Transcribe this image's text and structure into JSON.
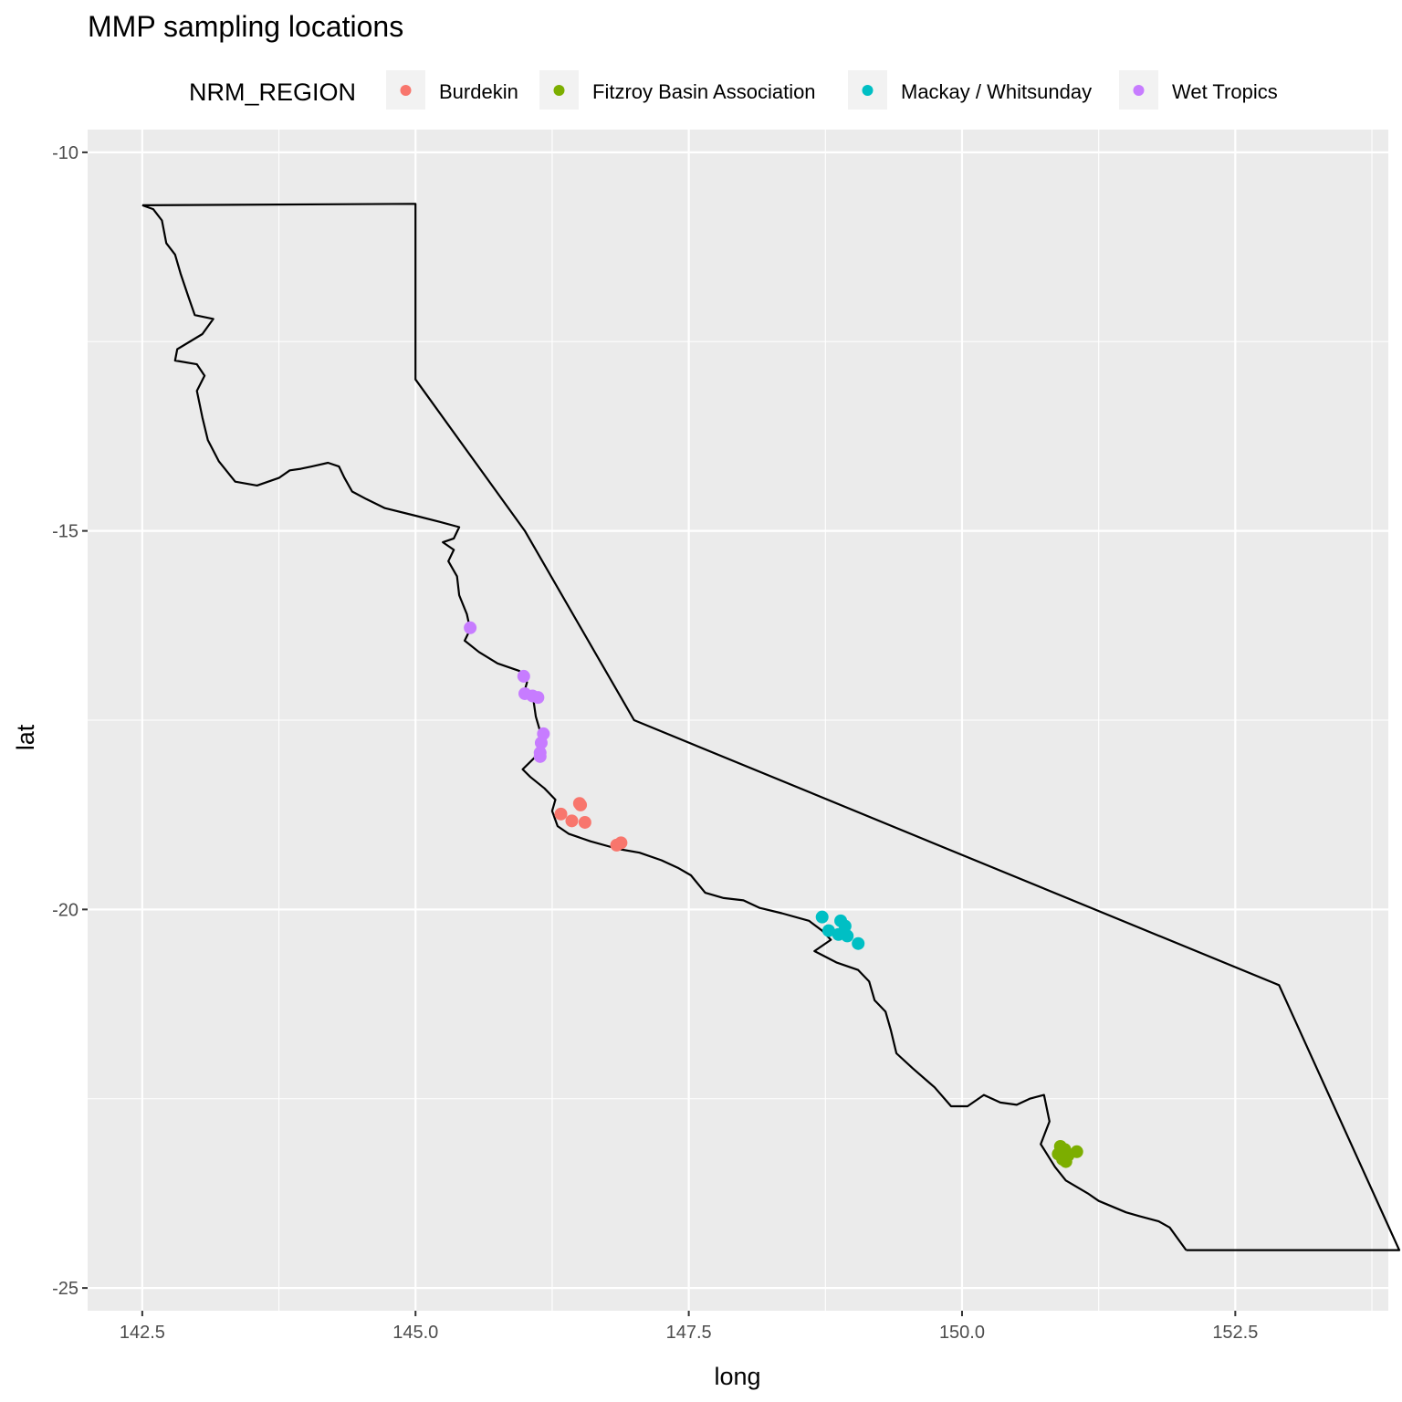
{
  "chart_data": {
    "type": "scatter",
    "title": "MMP sampling locations",
    "xlabel": "long",
    "ylabel": "lat",
    "xlim": [
      142.0,
      153.9
    ],
    "ylim": [
      -25.3,
      -9.7
    ],
    "x_ticks": [
      142.5,
      145.0,
      147.5,
      150.0,
      152.5
    ],
    "x_tick_labels": [
      "142.5",
      "145.0",
      "147.5",
      "150.0",
      "152.5"
    ],
    "y_ticks": [
      -10,
      -15,
      -20,
      -25
    ],
    "y_tick_labels": [
      "-10",
      "-15",
      "-20",
      "-25"
    ],
    "grid": true,
    "legend": {
      "title": "NRM_REGION",
      "position": "top",
      "entries": [
        "Burdekin",
        "Fitzroy Basin Association",
        "Mackay / Whitsunday",
        "Wet Tropics"
      ]
    },
    "colors": {
      "Burdekin": "#F8766D",
      "Fitzroy Basin Association": "#7CAE00",
      "Mackay / Whitsunday": "#00BFC4",
      "Wet Tropics": "#C77CFF",
      "panel": "#EBEBEB",
      "grid": "#FFFFFF"
    },
    "series": [
      {
        "name": "Burdekin",
        "points": [
          [
            146.5,
            -18.6
          ],
          [
            146.51,
            -18.62
          ],
          [
            146.33,
            -18.74
          ],
          [
            146.43,
            -18.83
          ],
          [
            146.55,
            -18.85
          ],
          [
            146.84,
            -19.15
          ],
          [
            146.88,
            -19.12
          ]
        ]
      },
      {
        "name": "Fitzroy Basin Association",
        "points": [
          [
            150.9,
            -23.13
          ],
          [
            150.94,
            -23.17
          ],
          [
            150.88,
            -23.23
          ],
          [
            150.97,
            -23.25
          ],
          [
            151.05,
            -23.2
          ],
          [
            150.92,
            -23.3
          ],
          [
            150.95,
            -23.33
          ]
        ]
      },
      {
        "name": "Mackay / Whitsunday",
        "points": [
          [
            148.72,
            -20.1
          ],
          [
            148.89,
            -20.15
          ],
          [
            148.78,
            -20.28
          ],
          [
            148.87,
            -20.33
          ],
          [
            148.95,
            -20.35
          ],
          [
            149.05,
            -20.45
          ],
          [
            148.93,
            -20.22
          ]
        ]
      },
      {
        "name": "Wet Tropics",
        "points": [
          [
            145.5,
            -16.28
          ],
          [
            145.99,
            -16.92
          ],
          [
            146.0,
            -17.15
          ],
          [
            146.07,
            -17.18
          ],
          [
            146.12,
            -17.2
          ],
          [
            146.17,
            -17.68
          ],
          [
            146.15,
            -17.8
          ],
          [
            146.14,
            -17.93
          ],
          [
            146.14,
            -17.98
          ]
        ]
      }
    ],
    "boundary_outline": {
      "outer": [
        [
          142.5,
          -10.7
        ],
        [
          145.0,
          -10.68
        ],
        [
          145.0,
          -13.0
        ],
        [
          146.0,
          -15.0
        ],
        [
          147.0,
          -17.5
        ],
        [
          152.9,
          -21.0
        ],
        [
          154.0,
          -24.5
        ],
        [
          152.05,
          -24.5
        ]
      ],
      "coast": [
        [
          142.5,
          -10.7
        ],
        [
          142.6,
          -10.75
        ],
        [
          142.68,
          -10.9
        ],
        [
          142.72,
          -11.2
        ],
        [
          142.8,
          -11.35
        ],
        [
          142.85,
          -11.6
        ],
        [
          142.92,
          -11.9
        ],
        [
          142.98,
          -12.15
        ],
        [
          143.15,
          -12.2
        ],
        [
          143.05,
          -12.4
        ],
        [
          142.82,
          -12.6
        ],
        [
          142.8,
          -12.75
        ],
        [
          143.0,
          -12.8
        ],
        [
          143.07,
          -12.95
        ],
        [
          143.0,
          -13.15
        ],
        [
          143.05,
          -13.5
        ],
        [
          143.1,
          -13.8
        ],
        [
          143.2,
          -14.08
        ],
        [
          143.35,
          -14.35
        ],
        [
          143.55,
          -14.4
        ],
        [
          143.75,
          -14.3
        ],
        [
          143.85,
          -14.2
        ],
        [
          143.95,
          -14.18
        ],
        [
          144.05,
          -14.15
        ],
        [
          144.2,
          -14.1
        ],
        [
          144.3,
          -14.15
        ],
        [
          144.35,
          -14.3
        ],
        [
          144.42,
          -14.48
        ],
        [
          144.55,
          -14.58
        ],
        [
          144.72,
          -14.7
        ],
        [
          145.0,
          -14.8
        ],
        [
          145.22,
          -14.88
        ],
        [
          145.4,
          -14.95
        ],
        [
          145.35,
          -15.1
        ],
        [
          145.25,
          -15.15
        ],
        [
          145.35,
          -15.25
        ],
        [
          145.3,
          -15.4
        ],
        [
          145.38,
          -15.6
        ],
        [
          145.4,
          -15.85
        ],
        [
          145.47,
          -16.1
        ],
        [
          145.5,
          -16.3
        ],
        [
          145.45,
          -16.45
        ],
        [
          145.58,
          -16.6
        ],
        [
          145.75,
          -16.75
        ],
        [
          145.95,
          -16.85
        ],
        [
          146.02,
          -17.0
        ],
        [
          146.0,
          -17.1
        ],
        [
          146.08,
          -17.25
        ],
        [
          146.1,
          -17.45
        ],
        [
          146.15,
          -17.7
        ],
        [
          146.12,
          -17.95
        ],
        [
          145.98,
          -18.15
        ],
        [
          146.05,
          -18.25
        ],
        [
          146.18,
          -18.4
        ],
        [
          146.28,
          -18.55
        ],
        [
          146.25,
          -18.7
        ],
        [
          146.3,
          -18.9
        ],
        [
          146.4,
          -19.0
        ],
        [
          146.6,
          -19.1
        ],
        [
          146.85,
          -19.2
        ],
        [
          147.05,
          -19.25
        ],
        [
          147.25,
          -19.35
        ],
        [
          147.4,
          -19.45
        ],
        [
          147.52,
          -19.55
        ],
        [
          147.65,
          -19.78
        ],
        [
          147.82,
          -19.85
        ],
        [
          148.0,
          -19.88
        ],
        [
          148.15,
          -19.98
        ],
        [
          148.35,
          -20.05
        ],
        [
          148.6,
          -20.15
        ],
        [
          148.72,
          -20.28
        ],
        [
          148.8,
          -20.4
        ],
        [
          148.65,
          -20.55
        ],
        [
          148.85,
          -20.7
        ],
        [
          149.05,
          -20.8
        ],
        [
          149.15,
          -20.95
        ],
        [
          149.2,
          -21.2
        ],
        [
          149.3,
          -21.35
        ],
        [
          149.35,
          -21.6
        ],
        [
          149.4,
          -21.9
        ],
        [
          149.55,
          -22.1
        ],
        [
          149.75,
          -22.35
        ],
        [
          149.9,
          -22.6
        ],
        [
          150.05,
          -22.6
        ],
        [
          150.2,
          -22.45
        ],
        [
          150.35,
          -22.55
        ],
        [
          150.5,
          -22.58
        ],
        [
          150.62,
          -22.5
        ],
        [
          150.75,
          -22.45
        ],
        [
          150.8,
          -22.8
        ],
        [
          150.72,
          -23.1
        ],
        [
          150.85,
          -23.4
        ],
        [
          150.95,
          -23.58
        ],
        [
          151.15,
          -23.75
        ],
        [
          151.25,
          -23.85
        ],
        [
          151.5,
          -24.0
        ],
        [
          151.62,
          -24.05
        ],
        [
          151.8,
          -24.12
        ],
        [
          151.9,
          -24.2
        ],
        [
          152.05,
          -24.5
        ]
      ]
    }
  }
}
